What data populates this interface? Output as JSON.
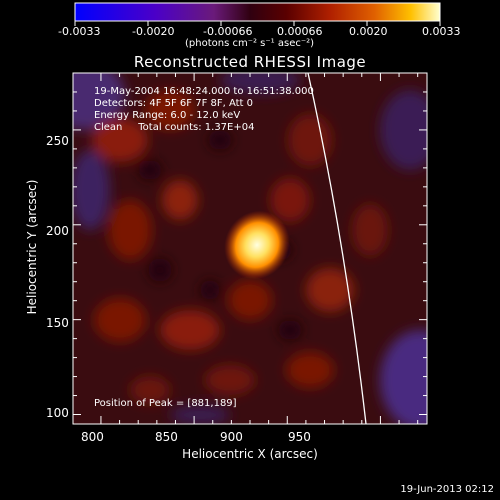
{
  "colorbar": {
    "tick_labels": [
      "-0.0033",
      "-0.0020",
      "-0.00066",
      "0.00066",
      "0.0020",
      "0.0033"
    ],
    "unit_label": "(photons cm⁻² s⁻¹ asec⁻²)"
  },
  "plot": {
    "title": "Reconstructed RHESSI Image",
    "x_axis_label": "Heliocentric X (arcsec)",
    "y_axis_label": "Heliocentric Y (arcsec)",
    "x_range": [
      785,
      975
    ],
    "y_range": [
      95,
      280
    ],
    "x_ticks": [
      "800",
      "850",
      "900",
      "950"
    ],
    "y_ticks": [
      "100",
      "150",
      "200",
      "250"
    ],
    "info_lines": [
      "19-May-2004 16:48:24.000 to 16:51:38.000",
      "Detectors: 4F 5F 6F 7F 8F, Att 0",
      "Energy Range: 6.0 - 12.0 keV",
      "Clean     Total counts: 1.37E+04"
    ],
    "peak_text": "Position of Peak = [881,189]",
    "peak_position": [
      881,
      189
    ]
  },
  "footer": {
    "timestamp": "19-Jun-2013 02:12"
  },
  "colors": {
    "background": "#000000",
    "foreground": "#ffffff",
    "peak": "#ffffaa",
    "colormap": [
      "#0000ff",
      "#4b00c8",
      "#6a1a7a",
      "#300010",
      "#5a0000",
      "#b02000",
      "#e06000",
      "#ffc000",
      "#ffffd0"
    ]
  }
}
